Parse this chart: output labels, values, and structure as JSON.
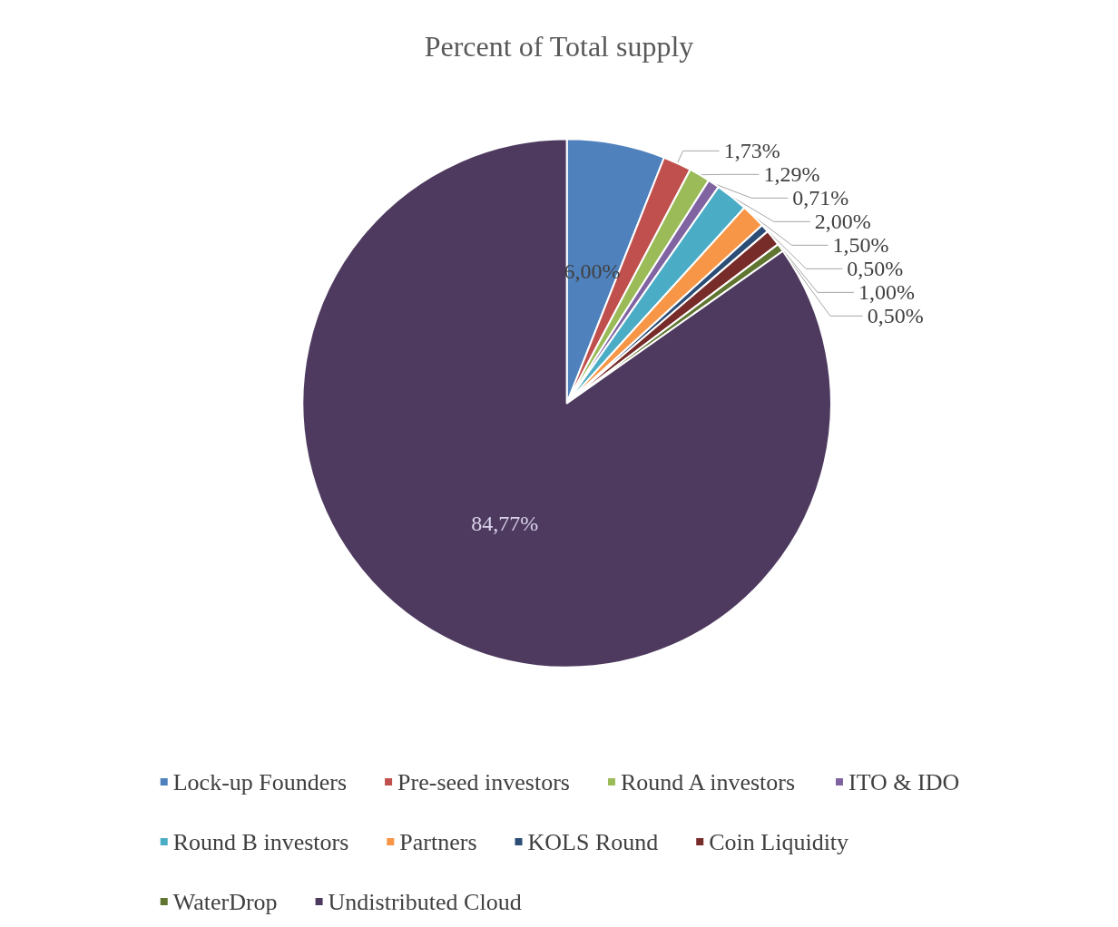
{
  "chart_data": {
    "type": "pie",
    "title": "Percent of Total supply",
    "categories": [
      "Lock-up Founders",
      "Pre-seed investors",
      "Round A investors",
      "ITO & IDO",
      "Round B investors",
      "Partners",
      "KOLS Round",
      "Coin Liquidity",
      "WaterDrop",
      "Undistributed Cloud"
    ],
    "values": [
      6.0,
      1.73,
      1.29,
      0.71,
      2.0,
      1.5,
      0.5,
      1.0,
      0.5,
      84.77
    ],
    "value_labels": [
      "6,00%",
      "1,73%",
      "1,29%",
      "0,71%",
      "2,00%",
      "1,50%",
      "0,50%",
      "1,00%",
      "0,50%",
      "84,77%"
    ],
    "colors": [
      "#4f81bd",
      "#c0504d",
      "#9bbb59",
      "#8064a2",
      "#4bacc6",
      "#f79646",
      "#2c4d75",
      "#772c2a",
      "#5f7530",
      "#4e3a5f"
    ],
    "legend": "bottom"
  }
}
